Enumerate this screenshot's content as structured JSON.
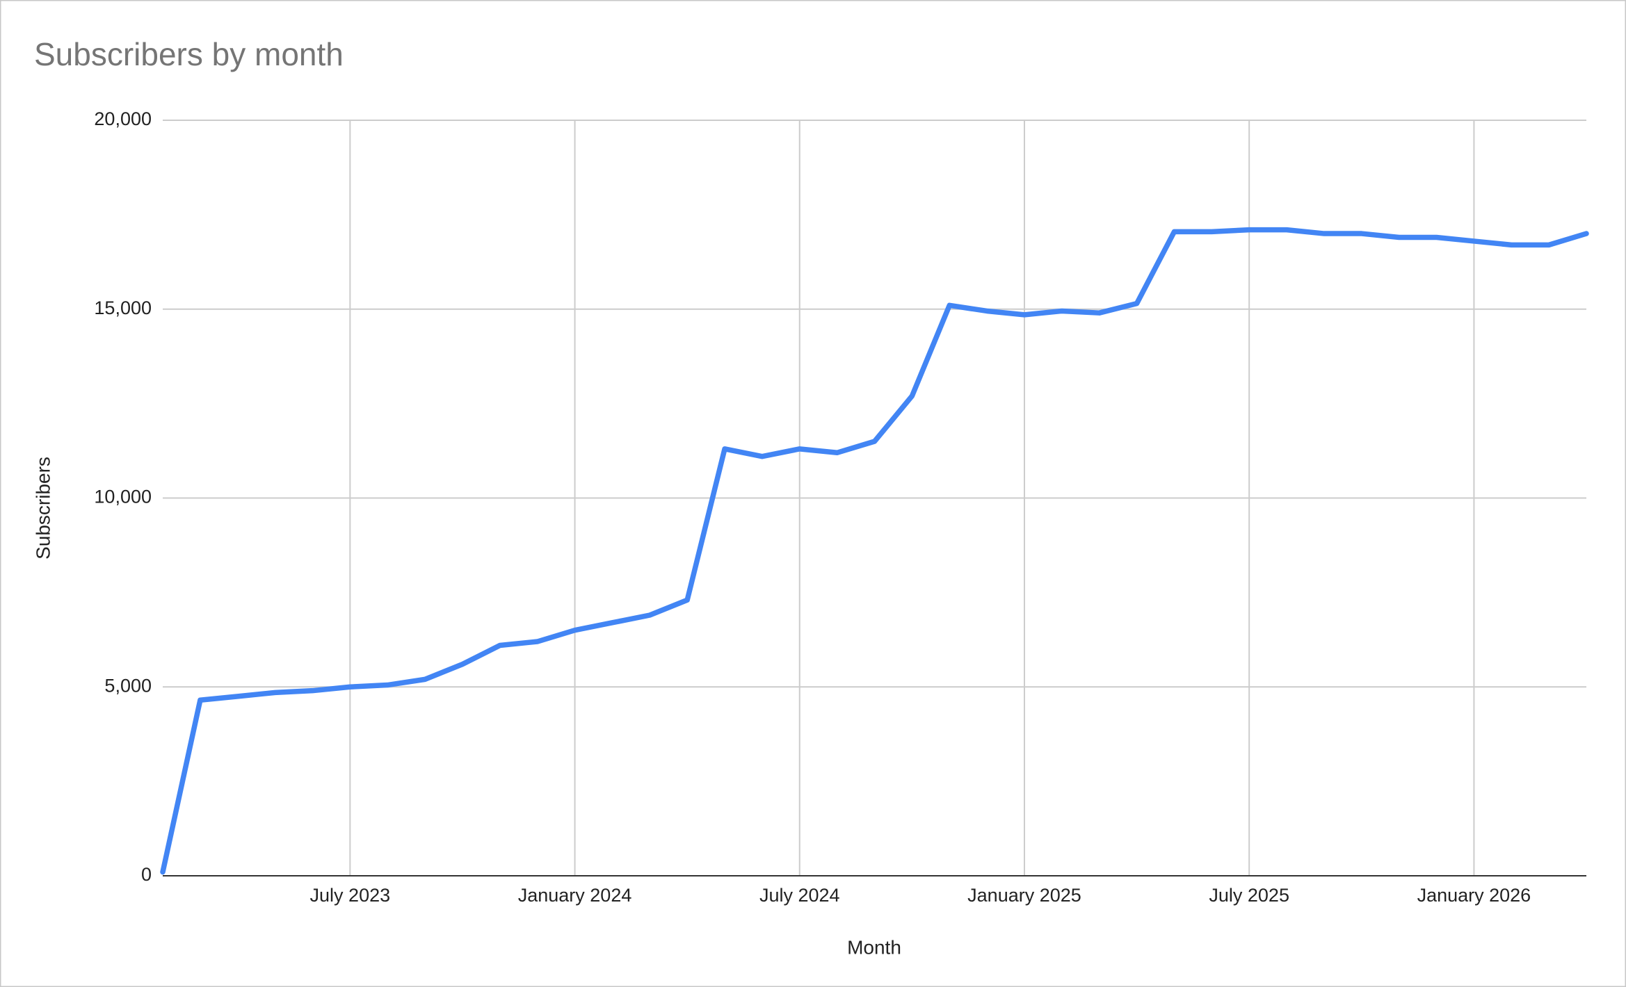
{
  "chart_data": {
    "type": "line",
    "title": "Subscribers by month",
    "x_label": "Month",
    "y_label": "Subscribers",
    "x": [
      "2023-02",
      "2023-03",
      "2023-04",
      "2023-05",
      "2023-06",
      "2023-07",
      "2023-08",
      "2023-09",
      "2023-10",
      "2023-11",
      "2023-12",
      "2024-01",
      "2024-02",
      "2024-03",
      "2024-04",
      "2024-05",
      "2024-06",
      "2024-07",
      "2024-08",
      "2024-09",
      "2024-10",
      "2024-11",
      "2024-12",
      "2025-01",
      "2025-02",
      "2025-03",
      "2025-04",
      "2025-05",
      "2025-06",
      "2025-07",
      "2025-08",
      "2025-09",
      "2025-10",
      "2025-11",
      "2025-12",
      "2026-01",
      "2026-02",
      "2026-03",
      "2026-04"
    ],
    "series": [
      {
        "name": "Subscribers",
        "color": "#4285f4",
        "values": [
          100,
          4650,
          4750,
          4850,
          4900,
          5000,
          5050,
          5200,
          5600,
          6100,
          6200,
          6500,
          6700,
          6900,
          7300,
          11300,
          11100,
          11300,
          11200,
          11500,
          12700,
          15100,
          14950,
          14850,
          14950,
          14900,
          15150,
          17050,
          17050,
          17100,
          17100,
          17000,
          17000,
          16900,
          16900,
          16800,
          16700,
          16700,
          17000
        ]
      }
    ],
    "xlim": [
      "2023-02",
      "2026-04"
    ],
    "xticks": [
      {
        "value": "2023-07",
        "label": "July 2023"
      },
      {
        "value": "2024-01",
        "label": "January 2024"
      },
      {
        "value": "2024-07",
        "label": "July 2024"
      },
      {
        "value": "2025-01",
        "label": "January 2025"
      },
      {
        "value": "2025-07",
        "label": "July 2025"
      },
      {
        "value": "2026-01",
        "label": "January 2026"
      }
    ],
    "ylim": [
      0,
      20000
    ],
    "yticks": [
      0,
      {
        "value": 5000,
        "label": "5,000"
      },
      {
        "value": 10000,
        "label": "10,000"
      },
      {
        "value": 15000,
        "label": "15,000"
      },
      {
        "value": 20000,
        "label": "20,000"
      }
    ],
    "grid": true
  }
}
